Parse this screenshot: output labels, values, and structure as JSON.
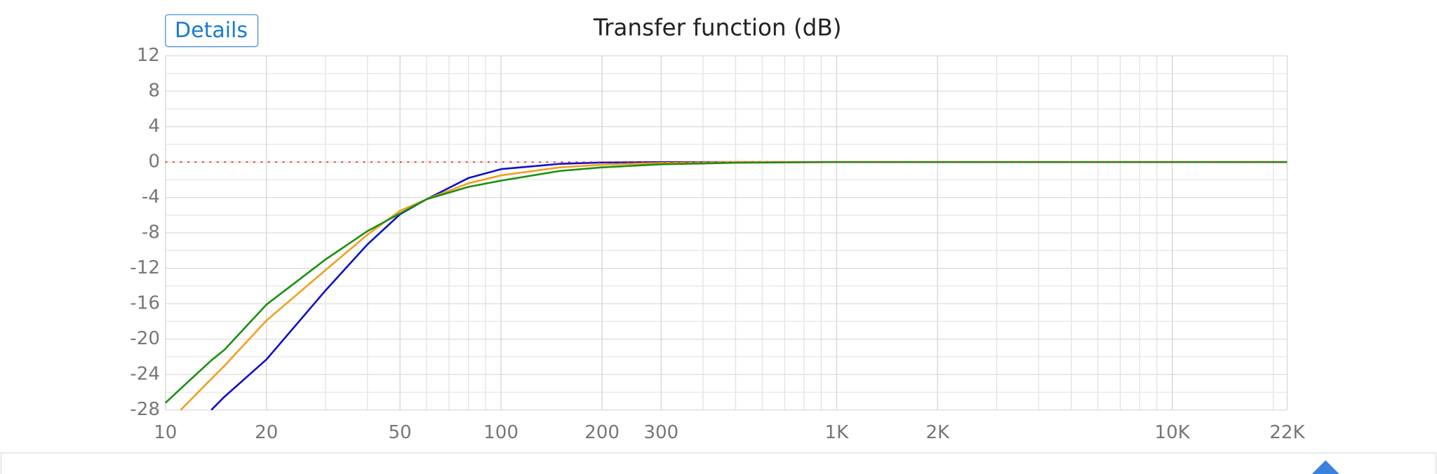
{
  "button": "Details",
  "chart_data": {
    "type": "line",
    "title": "Transfer function (dB)",
    "x": [
      10,
      11.1,
      13.7,
      15,
      20,
      30,
      40,
      50,
      60,
      80,
      100,
      150,
      200,
      300,
      500,
      1000,
      22000
    ],
    "series": [
      {
        "color": "#1010c8",
        "values": [
          null,
          null,
          -28,
          -26.5,
          -22.3,
          -14.5,
          -9.3,
          -5.9,
          -4.2,
          -1.8,
          -0.8,
          -0.2,
          -0.05,
          0,
          0,
          0,
          0
        ]
      },
      {
        "color": "#f0a020",
        "values": [
          null,
          -28,
          -24.5,
          -23,
          -17.9,
          -12.2,
          -8.2,
          -5.5,
          -4.2,
          -2.4,
          -1.5,
          -0.6,
          -0.3,
          -0.1,
          0,
          0,
          0
        ]
      },
      {
        "color": "#1a9010",
        "values": [
          -27.2,
          -25.6,
          -22.4,
          -21.2,
          -16.1,
          -11,
          -7.8,
          -5.8,
          -4.2,
          -2.8,
          -2.1,
          -1,
          -0.6,
          -0.25,
          -0.08,
          0,
          0
        ]
      }
    ],
    "xlim": [
      10,
      22000
    ],
    "xscale": "log",
    "xticks": [
      10,
      20,
      50,
      100,
      200,
      300,
      {
        "value": 1000,
        "label": "1K"
      },
      {
        "value": 2000,
        "label": "2K"
      },
      {
        "value": 10000,
        "label": "10K"
      },
      {
        "value": 22000,
        "label": "22K"
      }
    ],
    "ylim": [
      -28,
      12
    ],
    "yticks": [
      12,
      8,
      4,
      0,
      -4,
      -8,
      -12,
      -16,
      -20,
      -24,
      -28
    ],
    "grid": true,
    "reference_line": {
      "value": 0,
      "color": "#e02020"
    }
  }
}
